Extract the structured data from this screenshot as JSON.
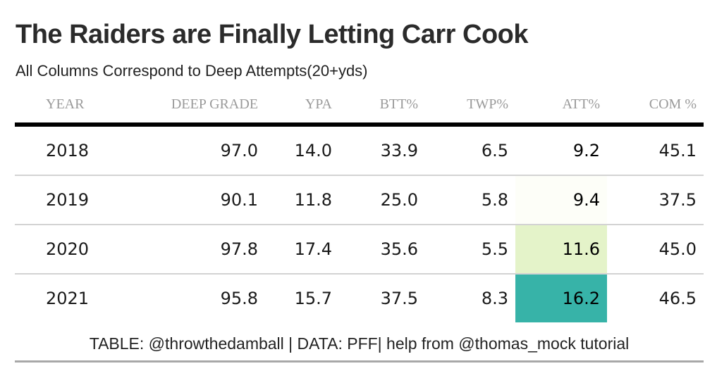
{
  "title": "The Raiders are Finally Letting Carr Cook",
  "subtitle": "All Columns Correspond to Deep Attempts(20+yds)",
  "footer": "TABLE: @throwthedamball | DATA: PFF| help from @thomas_mock tutorial",
  "chart_data": {
    "type": "table",
    "title": "The Raiders are Finally Letting Carr Cook",
    "subtitle": "All Columns Correspond to Deep Attempts(20+yds)",
    "columns": [
      "YEAR",
      "DEEP GRADE",
      "YPA",
      "BTT%",
      "TWP%",
      "ATT%",
      "COM %"
    ],
    "rows": [
      [
        "2018",
        "97.0",
        "14.0",
        "33.9",
        "6.5",
        "9.2",
        "45.1"
      ],
      [
        "2019",
        "90.1",
        "11.8",
        "25.0",
        "5.8",
        "9.4",
        "37.5"
      ],
      [
        "2020",
        "97.8",
        "17.4",
        "35.6",
        "5.5",
        "11.6",
        "45.0"
      ],
      [
        "2021",
        "95.8",
        "15.7",
        "37.5",
        "8.3",
        "16.2",
        "46.5"
      ]
    ],
    "highlight_column": "ATT%",
    "highlight_colors": [
      "#ffffff",
      "#fdfef8",
      "#e4f3c9",
      "#37b3a8"
    ]
  }
}
